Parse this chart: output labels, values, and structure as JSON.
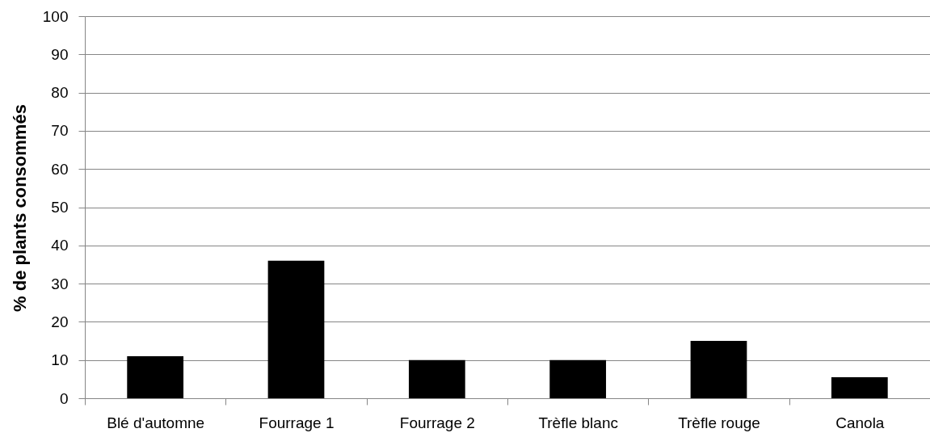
{
  "chart_data": {
    "type": "bar",
    "ylabel": "% de plants consommés",
    "categories": [
      "Blé d'automne",
      "Fourrage 1",
      "Fourrage 2",
      "Trèfle blanc",
      "Trèfle rouge",
      "Canola"
    ],
    "values": [
      11,
      36,
      10,
      10,
      15,
      5.5
    ],
    "color": "#000000",
    "ylim": [
      0,
      100
    ],
    "yticks": [
      0,
      10,
      20,
      30,
      40,
      50,
      60,
      70,
      80,
      90,
      100
    ],
    "grid": "y"
  }
}
